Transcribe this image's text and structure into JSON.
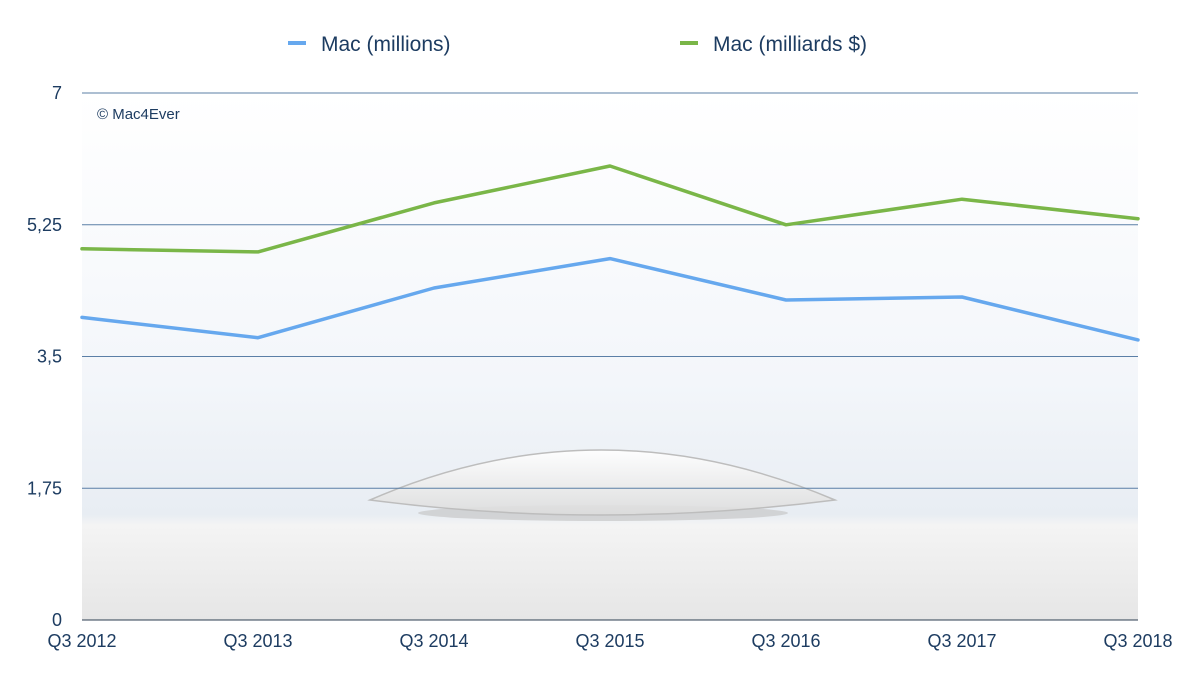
{
  "chart_data": {
    "type": "line",
    "watermark": "© Mac4Ever",
    "categories": [
      "Q3 2012",
      "Q3 2013",
      "Q3 2014",
      "Q3 2015",
      "Q3 2016",
      "Q3 2017",
      "Q3 2018"
    ],
    "y_ticks": [
      "0",
      "1,75",
      "3,5",
      "5,25",
      "7"
    ],
    "ylim": [
      0,
      7
    ],
    "grid": true,
    "legend_position": "top-center",
    "series": [
      {
        "name": "Mac (millions)",
        "color": "#66a8ee",
        "values": [
          4.02,
          3.75,
          4.41,
          4.8,
          4.25,
          4.29,
          3.72
        ]
      },
      {
        "name": "Mac (milliards $)",
        "color": "#7ab648",
        "values": [
          4.93,
          4.89,
          5.54,
          6.03,
          5.25,
          5.59,
          5.33
        ]
      }
    ]
  }
}
